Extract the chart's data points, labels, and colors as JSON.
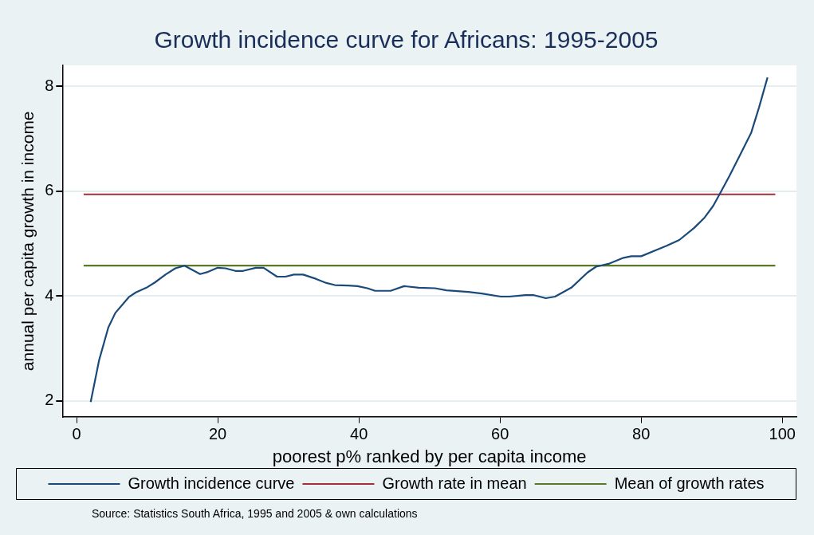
{
  "chart_data": {
    "type": "line",
    "title": "Growth incidence curve for Africans: 1995-2005",
    "xlabel": "poorest p% ranked by per capita income",
    "ylabel": "annual per capita growth in income",
    "annotations": [
      "Source: Statistics South Africa, 1995 and 2005 & own calculations"
    ],
    "xlim": [
      -2,
      102
    ],
    "ylim": [
      1.7,
      8.4
    ],
    "xticks": [
      0,
      20,
      40,
      60,
      80,
      100
    ],
    "yticks": [
      2,
      4,
      6,
      8
    ],
    "grid": "y",
    "legend": "bottom",
    "marker": "none",
    "series": [
      {
        "name": "Growth incidence curve",
        "color": "#1a4a7a",
        "x": [
          2.0,
          3.2,
          4.5,
          5.5,
          7.4,
          8.4,
          9.9,
          11.1,
          12.6,
          14.0,
          15.3,
          17.5,
          18.6,
          20.0,
          21.1,
          22.5,
          23.6,
          25.4,
          26.5,
          28.4,
          29.6,
          30.8,
          32.1,
          33.9,
          35.4,
          36.6,
          38.5,
          39.8,
          41.2,
          42.3,
          44.5,
          46.4,
          48.5,
          50.8,
          52.4,
          55.5,
          57.4,
          60.1,
          61.3,
          63.6,
          64.7,
          66.5,
          67.8,
          70.1,
          72.4,
          73.6,
          75.5,
          77.5,
          78.6,
          80.0,
          82.5,
          83.6,
          85.4,
          87.5,
          89.0,
          90.2,
          91.1,
          92.5,
          94.0,
          95.6,
          96.7,
          97.9
        ],
        "values": [
          1.98,
          2.78,
          3.4,
          3.68,
          3.98,
          4.07,
          4.16,
          4.26,
          4.41,
          4.53,
          4.58,
          4.42,
          4.46,
          4.54,
          4.53,
          4.48,
          4.48,
          4.54,
          4.54,
          4.37,
          4.37,
          4.41,
          4.41,
          4.33,
          4.25,
          4.21,
          4.2,
          4.19,
          4.15,
          4.1,
          4.1,
          4.19,
          4.16,
          4.15,
          4.11,
          4.08,
          4.05,
          3.99,
          3.99,
          4.02,
          4.02,
          3.96,
          3.99,
          4.16,
          4.45,
          4.56,
          4.62,
          4.73,
          4.76,
          4.76,
          4.9,
          4.96,
          5.07,
          5.3,
          5.5,
          5.72,
          5.94,
          6.29,
          6.69,
          7.12,
          7.6,
          8.17
        ]
      },
      {
        "name": "Growth rate in mean",
        "color": "#a0303a",
        "x": [
          1,
          99
        ],
        "values": [
          5.94,
          5.94
        ]
      },
      {
        "name": "Mean of growth rates",
        "color": "#5a7a2a",
        "x": [
          1,
          99
        ],
        "values": [
          4.58,
          4.58
        ]
      }
    ]
  }
}
